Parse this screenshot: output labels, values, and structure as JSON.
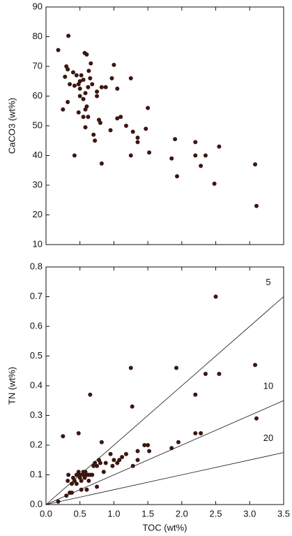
{
  "chart_data": [
    {
      "type": "scatter",
      "ylabel": "CaCO3 (wt%)",
      "color": "#3b1710",
      "xlim": [
        0,
        3.5
      ],
      "xticks": [
        0,
        0.5,
        1,
        1.5,
        2,
        2.5,
        3,
        3.5
      ],
      "ylim": [
        10,
        90
      ],
      "yticks": [
        10,
        20,
        30,
        40,
        50,
        60,
        70,
        80,
        90
      ],
      "x": [
        0.18,
        0.33,
        0.25,
        0.3,
        0.32,
        0.28,
        0.35,
        0.4,
        0.42,
        0.45,
        0.48,
        0.5,
        0.5,
        0.52,
        0.55,
        0.57,
        0.6,
        0.58,
        0.62,
        0.63,
        0.66,
        0.65,
        0.68,
        0.55,
        0.5,
        0.48,
        0.55,
        0.58,
        0.6,
        0.62,
        0.58,
        0.7,
        0.72,
        0.75,
        0.75,
        0.78,
        0.8,
        0.82,
        0.88,
        0.82,
        0.42,
        0.32,
        0.95,
        0.97,
        1.0,
        1.05,
        1.05,
        1.1,
        1.18,
        1.25,
        1.28,
        1.25,
        1.35,
        1.35,
        1.47,
        1.5,
        1.52,
        1.85,
        1.9,
        1.93,
        2.2,
        2.2,
        2.28,
        2.35,
        2.48,
        2.55,
        3.08,
        3.1
      ],
      "values": [
        75.5,
        80.3,
        55.5,
        70,
        69,
        66.5,
        64,
        68,
        63.5,
        67,
        64,
        65,
        62.5,
        67,
        65.5,
        74.5,
        74,
        61,
        63,
        68.5,
        71,
        66,
        64,
        59,
        60,
        54.5,
        53,
        55.5,
        56.5,
        53,
        49.5,
        47,
        45,
        60,
        61.5,
        52,
        51,
        63,
        63,
        37.3,
        40,
        58,
        48.5,
        66,
        70.5,
        62.5,
        52.5,
        53,
        50,
        66,
        48,
        40,
        44.5,
        46,
        49,
        56,
        41,
        39,
        45.5,
        33,
        44.5,
        40,
        36.5,
        40,
        30.5,
        43,
        37,
        23
      ]
    },
    {
      "type": "scatter",
      "xlabel": "TOC (wt%)",
      "ylabel": "TN (wt%)",
      "color": "#3b1710",
      "xlim": [
        0,
        3.5
      ],
      "xticks": [
        {
          "value": 0,
          "label": "0.0"
        },
        0.5,
        {
          "value": 1,
          "label": "1.0"
        },
        1.5,
        {
          "value": 2,
          "label": "2.0"
        },
        2.5,
        {
          "value": 3,
          "label": "3.0"
        },
        3.5
      ],
      "ylim": [
        0,
        0.8
      ],
      "yticks": [
        {
          "value": 0,
          "label": "0.0"
        },
        0.1,
        0.2,
        0.3,
        0.4,
        0.5,
        0.6,
        0.7,
        0.8
      ],
      "ratio_lines": [
        5,
        10,
        20
      ],
      "x": [
        0.18,
        0.25,
        0.3,
        0.32,
        0.33,
        0.35,
        0.38,
        0.38,
        0.4,
        0.42,
        0.45,
        0.45,
        0.48,
        0.48,
        0.5,
        0.5,
        0.52,
        0.52,
        0.55,
        0.55,
        0.57,
        0.58,
        0.6,
        0.6,
        0.62,
        0.63,
        0.65,
        0.65,
        0.68,
        0.7,
        0.72,
        0.75,
        0.75,
        0.78,
        0.8,
        0.82,
        0.85,
        0.88,
        0.95,
        0.98,
        1.0,
        1.05,
        1.08,
        1.12,
        1.18,
        1.25,
        1.27,
        1.28,
        1.35,
        1.35,
        1.45,
        1.5,
        1.52,
        1.85,
        1.92,
        1.95,
        2.2,
        2.2,
        2.28,
        2.35,
        2.5,
        2.55,
        3.08,
        3.1
      ],
      "values": [
        0.01,
        0.23,
        0.03,
        0.08,
        0.1,
        0.04,
        0.04,
        0.07,
        0.09,
        0.08,
        0.1,
        0.07,
        0.11,
        0.24,
        0.1,
        0.09,
        0.08,
        0.05,
        0.11,
        0.1,
        0.09,
        0.11,
        0.1,
        0.05,
        0.1,
        0.08,
        0.37,
        0.1,
        0.1,
        0.13,
        0.14,
        0.13,
        0.06,
        0.15,
        0.14,
        0.21,
        0.11,
        0.14,
        0.17,
        0.13,
        0.15,
        0.14,
        0.15,
        0.16,
        0.17,
        0.46,
        0.33,
        0.13,
        0.18,
        0.15,
        0.2,
        0.2,
        0.18,
        0.19,
        0.46,
        0.21,
        0.37,
        0.24,
        0.24,
        0.44,
        0.7,
        0.44,
        0.47,
        0.29
      ]
    }
  ]
}
